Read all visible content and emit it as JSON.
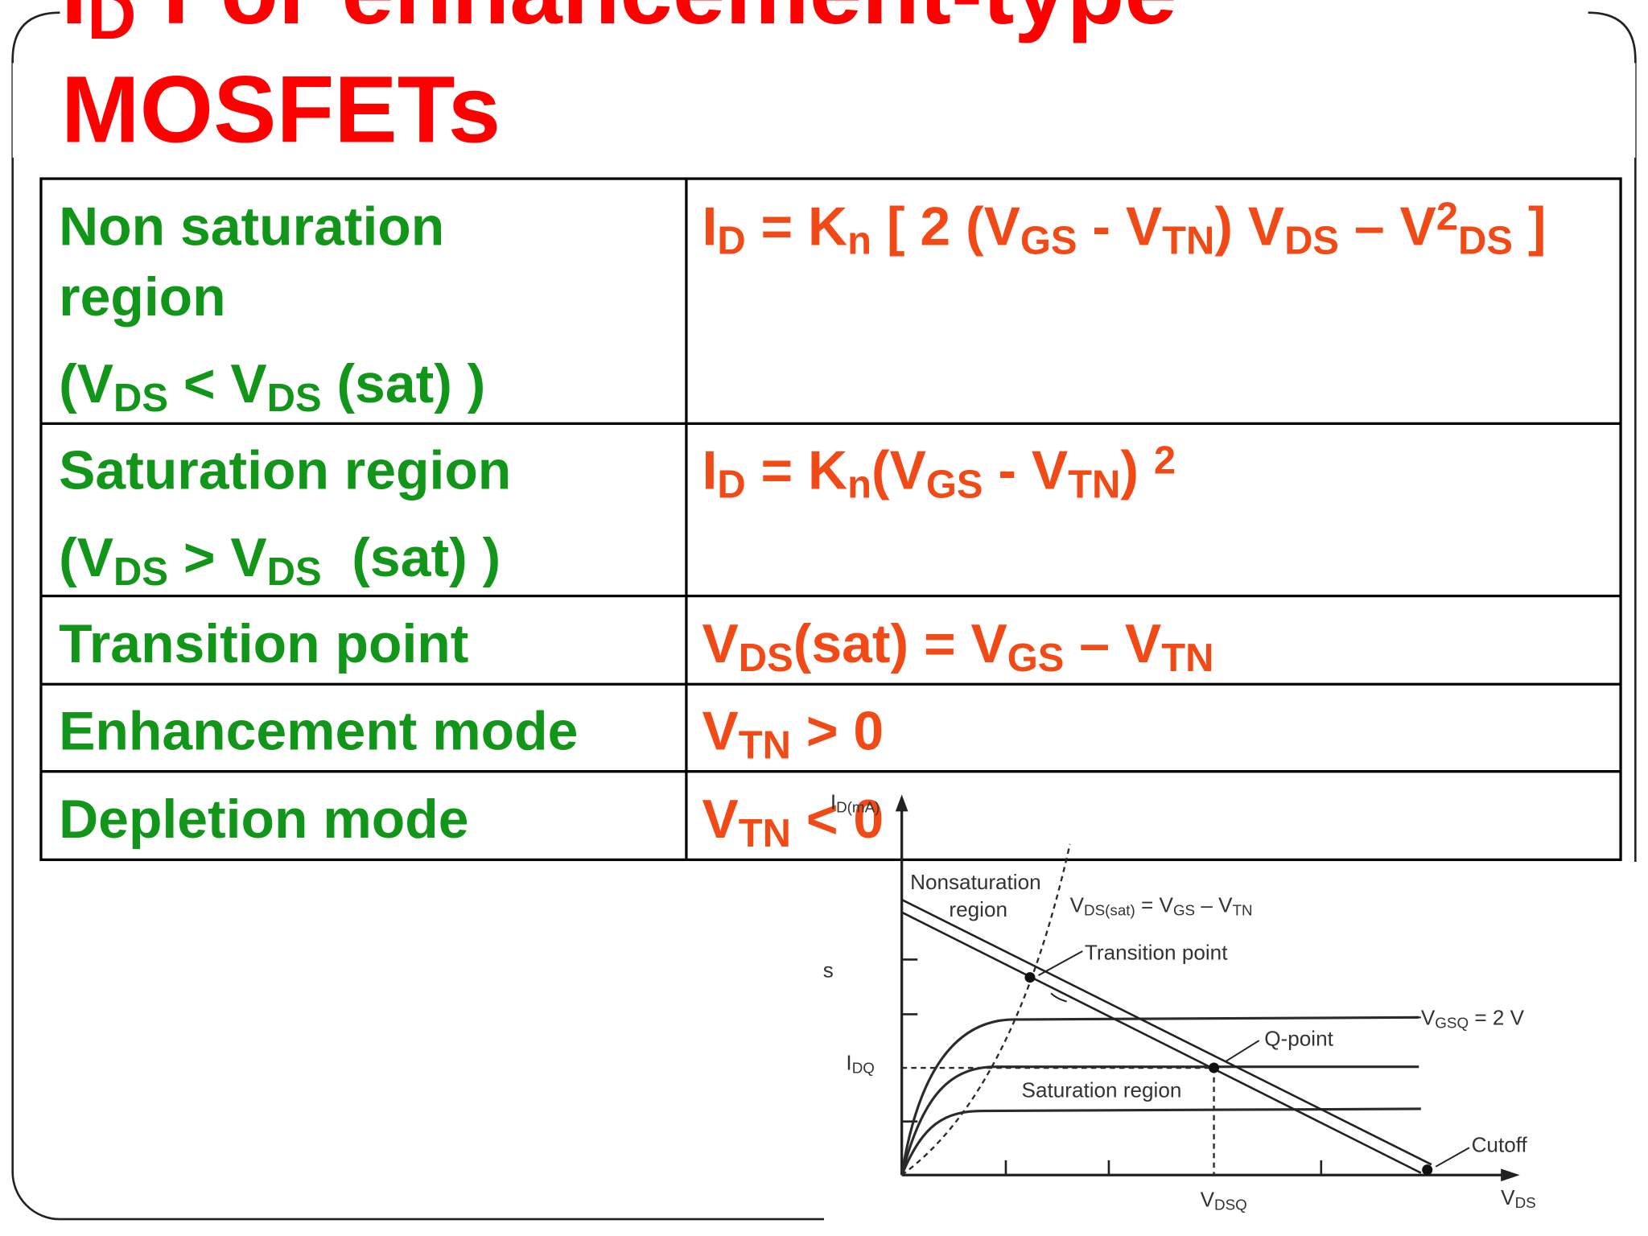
{
  "title": {
    "line1": [
      {
        "text": "I"
      },
      {
        "sub": "D"
      },
      {
        "text": " For enhancement-type"
      }
    ],
    "line2": "MOSFETs"
  },
  "table": {
    "rows": [
      {
        "label": [
          [
            {
              "text": "Non saturation"
            }
          ],
          [
            {
              "text": "region"
            }
          ],
          [
            {
              "text": "(V"
            },
            {
              "sub": "DS"
            },
            {
              "text": " < V"
            },
            {
              "sub": "DS"
            },
            {
              "text": " (sat) )"
            }
          ]
        ],
        "formula": [
          {
            "text": "I"
          },
          {
            "sub": "D"
          },
          {
            "text": " = K"
          },
          {
            "sub": "n"
          },
          {
            "text": " [ 2 (V"
          },
          {
            "sub": "GS"
          },
          {
            "text": " - V"
          },
          {
            "sub": "TN"
          },
          {
            "text": ") V"
          },
          {
            "sub": "DS"
          },
          {
            "text": " – V"
          },
          {
            "sup": "2"
          },
          {
            "sub": "DS"
          },
          {
            "text": " ]"
          }
        ]
      },
      {
        "label": [
          [
            {
              "text": "Saturation region"
            }
          ],
          [
            {
              "text": "(V"
            },
            {
              "sub": "DS"
            },
            {
              "text": " > V"
            },
            {
              "sub": "DS"
            },
            {
              "text": "  (sat) )"
            }
          ]
        ],
        "formula": [
          {
            "text": "I"
          },
          {
            "sub": "D"
          },
          {
            "text": " = K"
          },
          {
            "sub": "n"
          },
          {
            "text": "(V"
          },
          {
            "sub": "GS"
          },
          {
            "text": " - V"
          },
          {
            "sub": "TN"
          },
          {
            "text": ") "
          },
          {
            "sup": "2"
          }
        ]
      },
      {
        "label": [
          [
            {
              "text": "Transition point"
            }
          ]
        ],
        "formula": [
          {
            "text": "V"
          },
          {
            "sub": "DS"
          },
          {
            "text": "(sat) = V"
          },
          {
            "sub": "GS"
          },
          {
            "text": " – V"
          },
          {
            "sub": "TN"
          }
        ]
      },
      {
        "label": [
          [
            {
              "text": "Enhancement mode"
            }
          ]
        ],
        "formula": [
          {
            "text": "V"
          },
          {
            "sub": "TN"
          },
          {
            "text": " > 0"
          }
        ]
      },
      {
        "label": [
          [
            {
              "text": "Depletion mode"
            }
          ]
        ],
        "formula": [
          {
            "text": "V"
          },
          {
            "sub": "TN"
          },
          {
            "text": " < 0"
          }
        ]
      }
    ]
  },
  "diagram": {
    "y_axis": [
      {
        "text": "I"
      },
      {
        "sub": "D(mA)"
      }
    ],
    "nonsaturation": [
      "Nonsaturation",
      "region"
    ],
    "vds_sat": [
      {
        "text": "V"
      },
      {
        "sub": "DS(sat)"
      },
      {
        "text": " = V"
      },
      {
        "sub": "GS"
      },
      {
        "text": " – V"
      },
      {
        "sub": "TN"
      }
    ],
    "transition": "Transition point",
    "vgsq": [
      {
        "text": "V"
      },
      {
        "sub": "GSQ"
      },
      {
        "text": " = 2 V"
      }
    ],
    "q_point": "Q-point",
    "idq": [
      {
        "text": "I"
      },
      {
        "sub": "DQ"
      }
    ],
    "saturation": "Saturation region",
    "cutoff": "Cutoff",
    "vdsq": [
      {
        "text": "V"
      },
      {
        "sub": "DSQ"
      }
    ],
    "vds": [
      {
        "text": "V"
      },
      {
        "sub": "DS"
      }
    ],
    "s": "s"
  }
}
